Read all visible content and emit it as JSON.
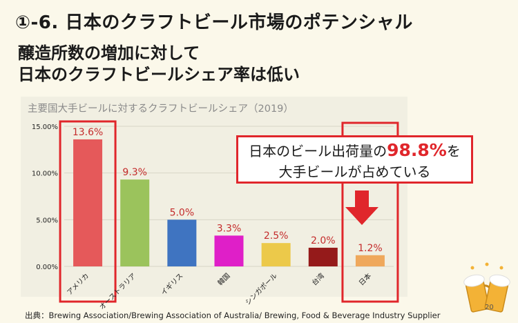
{
  "slide": {
    "title": "①-6. 日本のクラフトビール市場のポテンシャル",
    "headline_line1": "醸造所数の増加に対して",
    "headline_line2": "日本のクラフトビールシェア率は低い",
    "callout_pre": "日本のビール出荷量の",
    "callout_pct": "98.8%",
    "callout_post": "を",
    "callout_line2": "大手ビールが占めている",
    "source": "出典：Brewing Association/Brewing Association of Australia/ Brewing, Food & Beverage Industry Supplier",
    "page_number": "20"
  },
  "chart_data": {
    "type": "bar",
    "title": "主要国大手ビールに対するクラフトビールシェア（2019）",
    "categories": [
      "アメリカ",
      "オーストラリア",
      "イギリス",
      "韓国",
      "シンガポール",
      "台湾",
      "日本"
    ],
    "values": [
      13.6,
      9.3,
      5.0,
      3.3,
      2.5,
      2.0,
      1.2
    ],
    "value_labels": [
      "13.6%",
      "9.3%",
      "5.0%",
      "3.3%",
      "2.5%",
      "2.0%",
      "1.2%"
    ],
    "colors": [
      "#e5595a",
      "#9bc35c",
      "#3f74c1",
      "#df1fc8",
      "#ecc94a",
      "#951a1a",
      "#efa85c"
    ],
    "label_color": "#c42b2b",
    "highlight_color": "#e0262b",
    "y_ticks": [
      0,
      5,
      10,
      15
    ],
    "y_tick_labels": [
      "0.00%",
      "5.00%",
      "10.00%",
      "15.00%"
    ],
    "ylim": [
      0,
      15
    ],
    "grid": true,
    "highlighted": [
      "アメリカ",
      "日本"
    ]
  }
}
